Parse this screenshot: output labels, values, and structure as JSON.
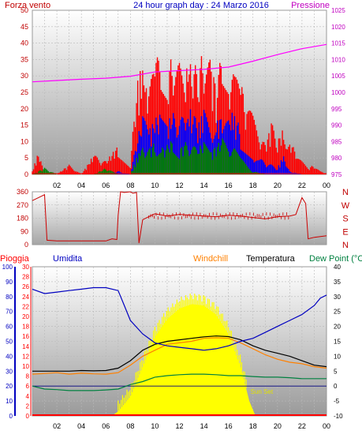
{
  "header": {
    "left_label": "Forza vento",
    "center_title": "24 hour graph day : 24 Marzo 2016",
    "right_label": "Pressione"
  },
  "colors": {
    "wind_axis": "#c00000",
    "pressure_axis": "#c000c0",
    "title": "#0000c0",
    "gust": "#ff0000",
    "avg_wind": "#0000ff",
    "low_wind": "#008000",
    "pressure": "#ff00ff",
    "direction": "#cc0000",
    "rain": "#ff0000",
    "humidity": "#0000c0",
    "windchill": "#ff8000",
    "temperature": "#000000",
    "dewpoint": "#008040",
    "solar": "#ffff00",
    "sunset_label": "#e0e000"
  },
  "time_axis": {
    "ticks": [
      "02",
      "04",
      "06",
      "08",
      "10",
      "12",
      "14",
      "16",
      "18",
      "20",
      "22",
      "00"
    ]
  },
  "chart_data": [
    {
      "type": "line",
      "panel": "wind_pressure",
      "x_range_hours": [
        0,
        24
      ],
      "y_left": {
        "label": "Forza vento",
        "ylim": [
          0,
          50
        ],
        "ticks": [
          "0",
          "5",
          "10",
          "15",
          "20",
          "25",
          "30",
          "35",
          "40",
          "45",
          "50"
        ]
      },
      "y_right": {
        "label": "Pressione",
        "ylim": [
          975,
          1025
        ],
        "ticks": [
          "975",
          "980",
          "985",
          "990",
          "995",
          "1000",
          "1005",
          "1010",
          "1015",
          "1020",
          "1025"
        ]
      },
      "series": [
        {
          "key": "gust",
          "x": [
            0,
            0.5,
            1,
            2,
            3,
            4,
            5,
            6,
            7,
            8,
            8.5,
            9,
            9.5,
            10,
            10.5,
            11,
            11.5,
            12,
            12.5,
            13,
            13.5,
            14,
            14.5,
            15,
            15.5,
            16,
            16.5,
            17,
            17.5,
            18,
            18.5,
            19,
            19.5,
            20,
            20.5,
            21,
            21.5,
            22,
            22.5,
            23,
            23.5,
            24
          ],
          "values": [
            1,
            7,
            0,
            0,
            3,
            0,
            6,
            4,
            9,
            3,
            28,
            34,
            24,
            38,
            33,
            30,
            39,
            35,
            33,
            37,
            31,
            40,
            36,
            28,
            38,
            35,
            30,
            28,
            22,
            18,
            14,
            9,
            16,
            11,
            14,
            12,
            6,
            4,
            2,
            3,
            1,
            0
          ]
        },
        {
          "key": "avg_wind",
          "x": [
            0,
            1,
            2,
            3,
            4,
            5,
            6,
            7,
            8,
            8.5,
            9,
            9.5,
            10,
            10.5,
            11,
            11.5,
            12,
            12.5,
            13,
            13.5,
            14,
            14.5,
            15,
            15.5,
            16,
            16.5,
            17,
            17.5,
            18,
            18.5,
            19,
            19.5,
            20,
            20.5,
            21,
            22,
            23,
            24
          ],
          "values": [
            0,
            0,
            0,
            0,
            0,
            0,
            0,
            1,
            0,
            10,
            18,
            14,
            17,
            19,
            16,
            19,
            18,
            17,
            21,
            15,
            20,
            18,
            16,
            19,
            17,
            20,
            13,
            10,
            7,
            5,
            4,
            3,
            2,
            6,
            1,
            0,
            0,
            0
          ]
        },
        {
          "key": "low_wind",
          "x": [
            0,
            1,
            2,
            3,
            4,
            5,
            6,
            7,
            8,
            8.5,
            9,
            9.5,
            10,
            10.5,
            11,
            11.5,
            12,
            12.5,
            13,
            13.5,
            14,
            14.5,
            15,
            15.5,
            16,
            16.5,
            17,
            17.5,
            18,
            19,
            20,
            21,
            22,
            23,
            24
          ],
          "values": [
            0,
            2,
            0,
            0,
            0,
            0,
            2,
            0,
            0,
            5,
            9,
            8,
            10,
            8,
            9,
            11,
            8,
            10,
            9,
            8,
            10,
            7,
            9,
            11,
            9,
            8,
            5,
            3,
            1,
            0,
            0,
            0,
            0,
            0,
            0
          ]
        },
        {
          "key": "pressure",
          "x": [
            0,
            2,
            4,
            6,
            8,
            10,
            12,
            14,
            16,
            18,
            20,
            22,
            24
          ],
          "values": [
            1003.2,
            1003.6,
            1004.0,
            1004.3,
            1004.9,
            1006.2,
            1006.6,
            1007.0,
            1007.7,
            1009.5,
            1011.5,
            1013.3,
            1014.6
          ]
        }
      ]
    },
    {
      "type": "line",
      "panel": "wind_direction",
      "x_range_hours": [
        0,
        24
      ],
      "y_left": {
        "ylim": [
          0,
          360
        ],
        "ticks": [
          "0",
          "90",
          "180",
          "270",
          "360"
        ]
      },
      "y_right": {
        "ticks": [
          "N",
          "W",
          "S",
          "E",
          "N"
        ]
      },
      "series": [
        {
          "key": "direction",
          "x": [
            0,
            0.5,
            1,
            1.2,
            2,
            4,
            6,
            6.5,
            6.9,
            7.0,
            7.2,
            7.5,
            8.0,
            8.2,
            8.5,
            8.7,
            9.0,
            9.5,
            10,
            11,
            12,
            13,
            14,
            15,
            16,
            17,
            18,
            19,
            20,
            21,
            21.5,
            22,
            22.3,
            22.5,
            23,
            23.5,
            24
          ],
          "values": [
            300,
            320,
            340,
            30,
            25,
            25,
            25,
            40,
            35,
            200,
            360,
            355,
            360,
            350,
            355,
            10,
            170,
            190,
            210,
            195,
            205,
            200,
            195,
            190,
            200,
            195,
            185,
            175,
            190,
            195,
            205,
            320,
            280,
            40,
            50,
            55,
            60
          ]
        }
      ]
    },
    {
      "type": "line",
      "panel": "weather",
      "legend": [
        "Pioggia",
        "Umidita",
        "Windchill",
        "Temperatura",
        "Dew Point (°C"
      ],
      "x_range_hours": [
        0,
        24
      ],
      "y_outer_left": {
        "ylim": [
          0,
          100
        ],
        "ticks": [
          "0",
          "10",
          "20",
          "30",
          "40",
          "50",
          "60",
          "70",
          "80",
          "90",
          "100"
        ]
      },
      "y_inner_left": {
        "ylim": [
          0,
          30
        ],
        "ticks": [
          "0",
          "2",
          "4",
          "6",
          "8",
          "10",
          "12",
          "14",
          "16",
          "18",
          "20",
          "22",
          "24",
          "26",
          "28",
          "30"
        ]
      },
      "y_right": {
        "ylim": [
          -10,
          40
        ],
        "ticks": [
          "-10",
          "-5",
          "0",
          "5",
          "10",
          "15",
          "20",
          "25",
          "30",
          "35",
          "40"
        ]
      },
      "annotation": "Sun Set",
      "series": [
        {
          "key": "humidity",
          "x": [
            0,
            1,
            2,
            3,
            4,
            5,
            6,
            7,
            7.5,
            8,
            9,
            10,
            11,
            12,
            13,
            14,
            15,
            16,
            17,
            18,
            19,
            20,
            21,
            22,
            23,
            23.5,
            24
          ],
          "values": [
            85,
            82,
            83,
            84,
            85,
            86,
            86,
            84,
            74,
            64,
            55,
            49,
            47,
            46,
            45,
            44,
            45,
            47,
            50,
            52,
            56,
            60,
            64,
            68,
            74,
            79,
            81
          ]
        },
        {
          "key": "temperature",
          "x": [
            0,
            1,
            2,
            3,
            4,
            5,
            6,
            7,
            8,
            9,
            10,
            11,
            12,
            13,
            14,
            15,
            16,
            17,
            18,
            19,
            20,
            21,
            22,
            23,
            24
          ],
          "values": [
            5.0,
            5.0,
            5.0,
            5.0,
            5.2,
            5.1,
            5.2,
            6.0,
            8.5,
            12.0,
            14.0,
            15.0,
            15.5,
            16.0,
            16.5,
            16.8,
            16.6,
            15.5,
            13.5,
            12.0,
            11.0,
            10.0,
            8.5,
            7.0,
            6.5
          ]
        },
        {
          "key": "windchill",
          "x": [
            0,
            1,
            2,
            3,
            4,
            5,
            6,
            7,
            8,
            9,
            10,
            11,
            12,
            13,
            14,
            15,
            16,
            17,
            18,
            19,
            20,
            21,
            22,
            23,
            24
          ],
          "values": [
            4.0,
            4.2,
            4.5,
            4.0,
            4.3,
            4.1,
            4.0,
            4.5,
            7.0,
            10.0,
            12.0,
            14.0,
            14.5,
            15.0,
            16.0,
            16.2,
            16.0,
            14.5,
            12.5,
            10.5,
            9.0,
            8.0,
            7.5,
            6.5,
            6.0
          ]
        },
        {
          "key": "dewpoint",
          "x": [
            0,
            1,
            2,
            3,
            4,
            5,
            6,
            7,
            8,
            9,
            10,
            11,
            12,
            13,
            14,
            15,
            16,
            17,
            18,
            19,
            20,
            21,
            22,
            23,
            24
          ],
          "values": [
            0.0,
            -1.0,
            -1.2,
            -1.5,
            -1.5,
            -1.5,
            -1.3,
            -1.0,
            0.5,
            1.5,
            3.0,
            3.5,
            3.8,
            4.0,
            4.0,
            3.8,
            3.5,
            3.5,
            3.2,
            3.0,
            3.0,
            2.8,
            2.5,
            2.5,
            2.5
          ]
        },
        {
          "key": "solar",
          "x": [
            0,
            6.5,
            7,
            8,
            9,
            10,
            11,
            12,
            13,
            14,
            15,
            16,
            17,
            17.7,
            18.2,
            24
          ],
          "values": [
            0,
            0,
            3,
            13,
            33,
            53,
            65,
            72,
            75,
            74,
            68,
            55,
            33,
            10,
            0,
            0
          ]
        }
      ]
    }
  ]
}
